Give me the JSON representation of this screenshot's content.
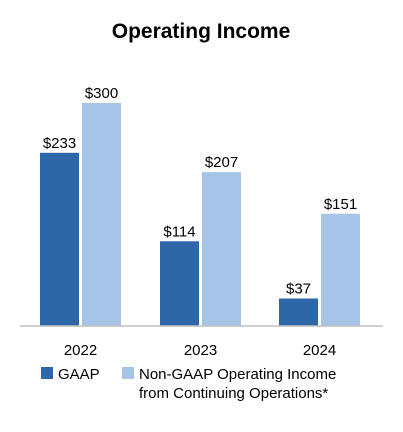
{
  "chart_data": {
    "type": "bar",
    "title": "Operating Income",
    "xlabel": "",
    "ylabel": "",
    "categories": [
      "2022",
      "2023",
      "2024"
    ],
    "series": [
      {
        "name": "GAAP",
        "values": [
          233,
          114,
          37
        ],
        "labels": [
          "$233",
          "$114",
          "$37"
        ],
        "color": "#2e67a8"
      },
      {
        "name_lines": [
          "Non-GAAP Operating Income",
          "from Continuing Operations*"
        ],
        "values": [
          300,
          207,
          151
        ],
        "labels": [
          "$300",
          "$207",
          "$151"
        ],
        "color": "#a6c5e6"
      }
    ],
    "ylim": [
      0,
      300
    ],
    "grid": false,
    "legend_position": "bottom"
  },
  "colors": {
    "baseline": "#bfbfbf"
  }
}
